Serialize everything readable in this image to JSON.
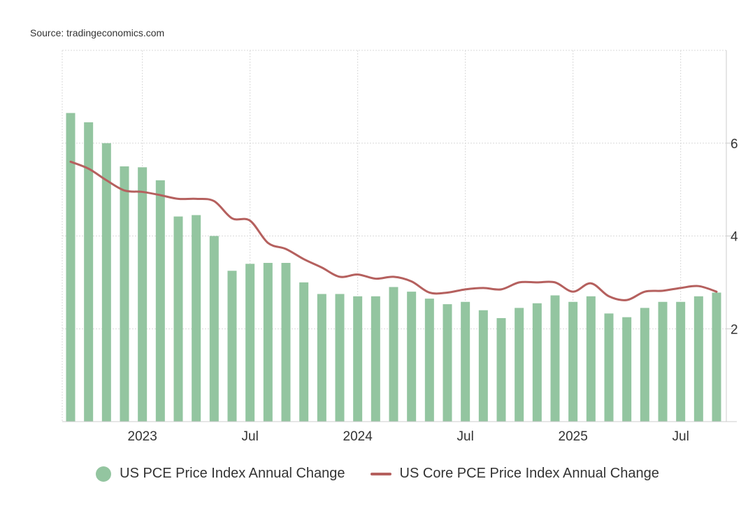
{
  "source_label": "Source: tradingeconomics.com",
  "colors": {
    "bar": "#93c5a0",
    "line": "#b5605e",
    "grid": "#d9d9d9",
    "axis": "#cccccc",
    "text": "#333333"
  },
  "chart_data": {
    "type": "bar",
    "x": [
      "2022-09",
      "2022-10",
      "2022-11",
      "2022-12",
      "2023-01",
      "2023-02",
      "2023-03",
      "2023-04",
      "2023-05",
      "2023-06",
      "2023-07",
      "2023-08",
      "2023-09",
      "2023-10",
      "2023-11",
      "2023-12",
      "2024-01",
      "2024-02",
      "2024-03",
      "2024-04",
      "2024-05",
      "2024-06",
      "2024-07",
      "2024-08",
      "2024-09",
      "2024-10",
      "2024-11",
      "2024-12",
      "2025-01",
      "2025-02",
      "2025-03",
      "2025-04",
      "2025-05",
      "2025-06",
      "2025-07",
      "2025-08",
      "2025-09"
    ],
    "series": [
      {
        "name": "US PCE Price Index Annual Change",
        "type": "bar",
        "values": [
          6.65,
          6.45,
          6.0,
          5.5,
          5.48,
          5.2,
          4.42,
          4.45,
          4.0,
          3.25,
          3.4,
          3.42,
          3.42,
          3.0,
          2.75,
          2.75,
          2.7,
          2.7,
          2.9,
          2.8,
          2.65,
          2.53,
          2.58,
          2.4,
          2.23,
          2.45,
          2.55,
          2.72,
          2.58,
          2.7,
          2.33,
          2.25,
          2.45,
          2.58,
          2.58,
          2.7,
          2.78
        ]
      },
      {
        "name": "US Core PCE Price Index Annual Change",
        "type": "line",
        "values": [
          5.6,
          5.45,
          5.2,
          4.98,
          4.95,
          4.88,
          4.8,
          4.8,
          4.75,
          4.38,
          4.33,
          3.85,
          3.72,
          3.5,
          3.32,
          3.12,
          3.17,
          3.08,
          3.12,
          3.02,
          2.78,
          2.78,
          2.85,
          2.88,
          2.85,
          3.0,
          3.0,
          3.0,
          2.8,
          2.98,
          2.7,
          2.62,
          2.8,
          2.82,
          2.88,
          2.92,
          2.8
        ]
      }
    ],
    "x_tick_labels": [
      {
        "label": "2023",
        "at": "2023-01"
      },
      {
        "label": "Jul",
        "at": "2023-07"
      },
      {
        "label": "2024",
        "at": "2024-01"
      },
      {
        "label": "Jul",
        "at": "2024-07"
      },
      {
        "label": "2025",
        "at": "2025-01"
      },
      {
        "label": "Jul",
        "at": "2025-07"
      }
    ],
    "y_ticks": [
      2,
      4,
      6
    ],
    "ylim": [
      0,
      8
    ],
    "y_axis_side": "right",
    "grid": true,
    "legend_position": "bottom"
  }
}
